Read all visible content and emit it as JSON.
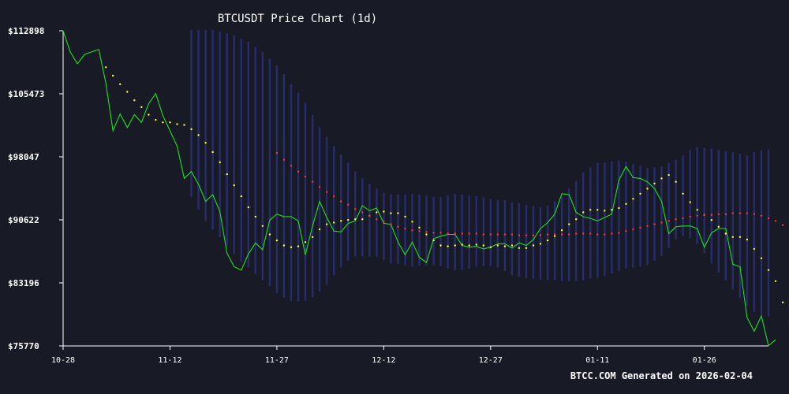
{
  "chart_data": {
    "type": "line",
    "title": "BTCUSDT Price Chart (1d)",
    "footer": "BTCC.COM Generated on 2026-02-04",
    "xlabel": "",
    "ylabel": "",
    "x_range": [
      "2025-10-28",
      "2026-02-04"
    ],
    "ylim": [
      75770,
      112898
    ],
    "y_ticks": [
      {
        "value": 112898,
        "label": "$112898"
      },
      {
        "value": 105473,
        "label": "$105473"
      },
      {
        "value": 98047,
        "label": "$98047"
      },
      {
        "value": 90622,
        "label": "$90622"
      },
      {
        "value": 83196,
        "label": "$83196"
      },
      {
        "value": 75770,
        "label": "$75770"
      }
    ],
    "x_ticks": [
      {
        "date": "2025-10-28",
        "label": "10-28"
      },
      {
        "date": "2025-11-12",
        "label": "11-12"
      },
      {
        "date": "2025-11-27",
        "label": "11-27"
      },
      {
        "date": "2025-12-12",
        "label": "12-12"
      },
      {
        "date": "2025-12-27",
        "label": "12-27"
      },
      {
        "date": "2026-01-11",
        "label": "01-11"
      },
      {
        "date": "2026-01-26",
        "label": "01-26"
      }
    ],
    "grid": false,
    "colors": {
      "background": "#181b26",
      "price": "#22dd22",
      "ma_short": "#ffff33",
      "ma_long": "#ff3333",
      "band": "#2a2f7a",
      "axis": "#ffffff"
    },
    "series": [
      {
        "key": "price",
        "start": "2025-10-28",
        "values": [
          112898,
          110400,
          109000,
          110100,
          110400,
          110700,
          106700,
          101100,
          103100,
          101500,
          103000,
          102100,
          104300,
          105500,
          102900,
          101100,
          99300,
          95500,
          96300,
          94800,
          92800,
          93600,
          91600,
          86700,
          85100,
          84700,
          86600,
          87900,
          87100,
          90600,
          91300,
          91000,
          91000,
          90500,
          86500,
          89900,
          92800,
          90900,
          89300,
          89200,
          90200,
          90500,
          92300,
          91700,
          92000,
          90200,
          90100,
          88000,
          86500,
          88000,
          86200,
          85600,
          88400,
          88700,
          88900,
          88900,
          87600,
          87400,
          87500,
          87200,
          87400,
          87800,
          87800,
          87300,
          87900,
          87600,
          88300,
          89600,
          90300,
          91300,
          93700,
          93600,
          91500,
          91000,
          90800,
          90500,
          90900,
          91300,
          95300,
          96900,
          95600,
          95500,
          95100,
          94300,
          92800,
          89000,
          89800,
          89900,
          89900,
          89600,
          87400,
          89100,
          89600,
          89600,
          85400,
          85100,
          79100,
          77500,
          79300,
          75800,
          76500
        ]
      },
      {
        "key": "ma_short",
        "start": "2025-11-03",
        "values": [
          108600,
          107600,
          106600,
          105700,
          104700,
          103900,
          103000,
          102400,
          102100,
          102100,
          101900,
          101800,
          101300,
          100600,
          99700,
          98600,
          97400,
          96000,
          94700,
          93400,
          92100,
          91000,
          89900,
          88900,
          88200,
          87600,
          87400,
          87500,
          88000,
          88600,
          89500,
          90100,
          90300,
          90500,
          90600,
          90700,
          90700,
          91100,
          91500,
          91600,
          91400,
          91400,
          91000,
          90400,
          89700,
          88900,
          88200,
          87600,
          87500,
          87600,
          87700,
          87600,
          87700,
          87600,
          87400,
          87600,
          87500,
          87600,
          87300,
          87300,
          87600,
          87800,
          88200,
          88700,
          89400,
          90100,
          90700,
          91500,
          91800,
          91800,
          91700,
          91800,
          92000,
          92500,
          93100,
          93700,
          94300,
          94900,
          95500,
          95900,
          95100,
          93700,
          92700,
          91800,
          91200,
          90600,
          89800,
          89000,
          88600,
          88600,
          88300,
          87200,
          86100,
          84700,
          83400,
          80900,
          78500
        ]
      },
      {
        "key": "ma_long",
        "start": "2025-11-27",
        "values": [
          98500,
          97700,
          97000,
          96300,
          95700,
          95100,
          94500,
          93900,
          93400,
          92800,
          92400,
          91900,
          91500,
          91100,
          90700,
          90400,
          90100,
          89800,
          89600,
          89400,
          89300,
          89200,
          89100,
          89100,
          89000,
          89000,
          89000,
          89000,
          89000,
          88900,
          88900,
          88900,
          88900,
          88900,
          88800,
          88800,
          88800,
          88800,
          88900,
          88900,
          88900,
          88900,
          89000,
          89000,
          89000,
          88900,
          88900,
          89000,
          89100,
          89300,
          89500,
          89700,
          89900,
          90100,
          90300,
          90500,
          90700,
          90800,
          91000,
          91100,
          91200,
          91200,
          91300,
          91300,
          91400,
          91400,
          91400,
          91300,
          91100,
          90800,
          90500,
          90000,
          89400,
          89000
        ]
      }
    ],
    "band": {
      "start": "2025-11-15",
      "upper": [
        113000,
        113000,
        113000,
        113000,
        112800,
        112600,
        112400,
        112000,
        111600,
        111000,
        110400,
        109600,
        108800,
        107800,
        106600,
        105600,
        104400,
        103000,
        101600,
        100400,
        99300,
        98300,
        97300,
        96300,
        95500,
        94900,
        94300,
        93800,
        93600,
        93600,
        93600,
        93700,
        93600,
        93500,
        93300,
        93300,
        93500,
        93700,
        93600,
        93500,
        93400,
        93300,
        93100,
        93000,
        92900,
        92700,
        92600,
        92400,
        92300,
        92100,
        92300,
        92800,
        93400,
        94300,
        95200,
        96200,
        96800,
        97300,
        97400,
        97500,
        97600,
        97500,
        97200,
        97000,
        96700,
        96800,
        96900,
        97300,
        97700,
        98200,
        98900,
        99200,
        99100,
        99000,
        98900,
        98700,
        98600,
        98400,
        98200,
        98600,
        98800,
        98900
      ],
      "lower": [
        93300,
        91800,
        90500,
        89500,
        88600,
        87600,
        86600,
        85700,
        85000,
        84200,
        83500,
        82800,
        82000,
        81500,
        81100,
        81000,
        81100,
        81500,
        82200,
        83000,
        84100,
        85000,
        85800,
        86300,
        86300,
        86300,
        86300,
        85900,
        85500,
        85400,
        85300,
        85100,
        85200,
        85300,
        85300,
        85200,
        84900,
        84700,
        84700,
        84900,
        85100,
        85200,
        85200,
        85000,
        84600,
        84100,
        83900,
        83800,
        83700,
        83600,
        83500,
        83500,
        83400,
        83400,
        83400,
        83500,
        83700,
        83800,
        84000,
        84300,
        84600,
        84900,
        85000,
        85100,
        85300,
        85800,
        86400,
        87300,
        88300,
        88700,
        88500,
        87800,
        86700,
        85500,
        84400,
        83500,
        82400,
        81400,
        80500,
        79800,
        79400,
        79200
      ]
    }
  }
}
